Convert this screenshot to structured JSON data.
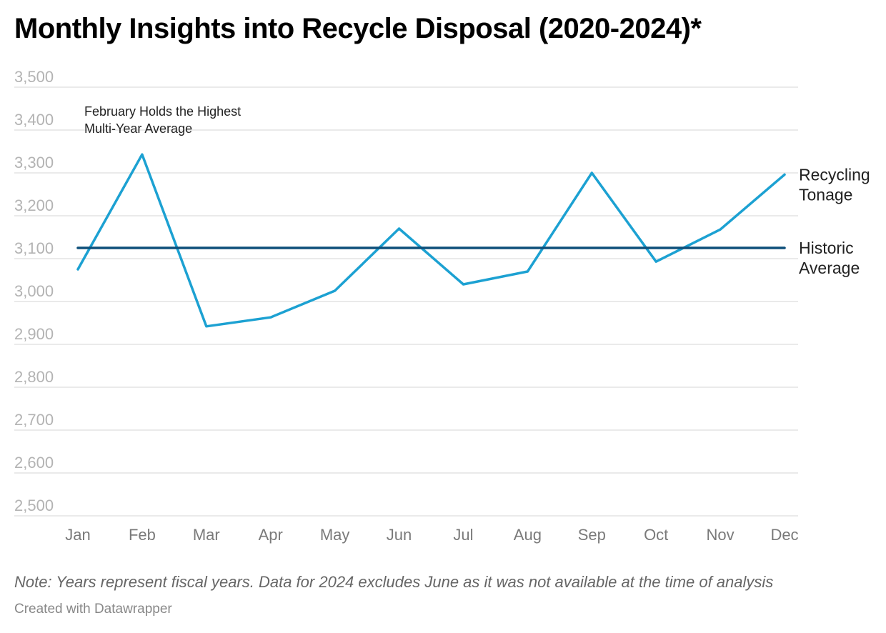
{
  "title": "Monthly Insights into Recycle Disposal (2020-2024)*",
  "note": "Note: Years represent fiscal years. Data for 2024 excludes June as it was not available at the time of analysis",
  "credit": "Created with Datawrapper",
  "colors": {
    "series": "#1ca1d2",
    "average": "#0d4f7a",
    "grid": "#e3e3e3",
    "tick": "#b3b3b3",
    "xtick": "#7a7a7a"
  },
  "chart_data": {
    "type": "line",
    "title": "Monthly Insights into Recycle Disposal (2020-2024)*",
    "categories": [
      "Jan",
      "Feb",
      "Mar",
      "Apr",
      "May",
      "Jun",
      "Jul",
      "Aug",
      "Sep",
      "Oct",
      "Nov",
      "Dec"
    ],
    "series": [
      {
        "name": "Recycling Tonage",
        "label_lines": [
          "Recycling",
          "Tonage"
        ],
        "values": [
          3075,
          3343,
          2942,
          2963,
          3025,
          3170,
          3040,
          3070,
          3300,
          3093,
          3168,
          3296
        ]
      },
      {
        "name": "Historic Average",
        "label_lines": [
          "Historic",
          "Average"
        ],
        "values": [
          3125,
          3125,
          3125,
          3125,
          3125,
          3125,
          3125,
          3125,
          3125,
          3125,
          3125,
          3125
        ]
      }
    ],
    "yticks": [
      "3,500",
      "3,400",
      "3,300",
      "3,200",
      "3,100",
      "3,000",
      "2,900",
      "2,800",
      "2,700",
      "2,600",
      "2,500"
    ],
    "ylim": [
      2500,
      3500
    ],
    "grid": true,
    "annotation": {
      "lines": [
        "February Holds the Highest",
        "Multi-Year Average"
      ],
      "category": "Feb"
    }
  }
}
